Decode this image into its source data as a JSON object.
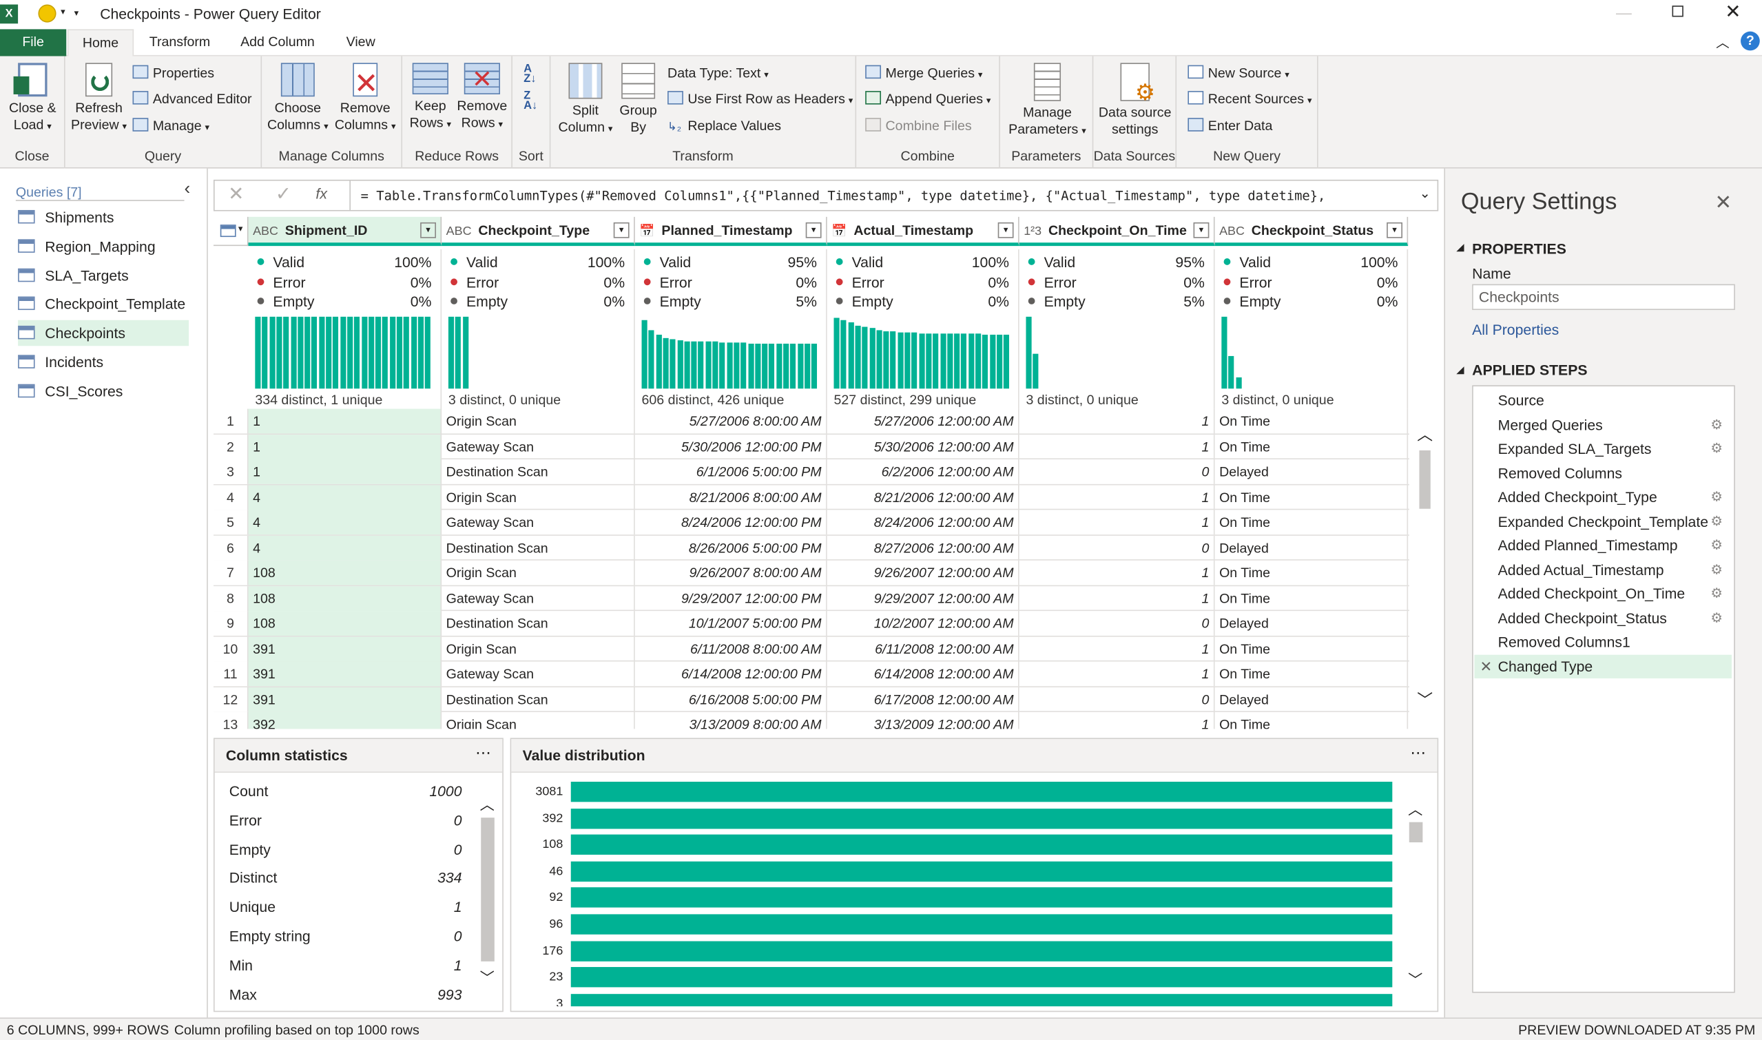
{
  "window": {
    "title": "Checkpoints - Power Query Editor"
  },
  "tabs": [
    "File",
    "Home",
    "Transform",
    "Add Column",
    "View"
  ],
  "ribbon": {
    "close": {
      "btn": "Close &\nLoad",
      "group": "Close"
    },
    "query": {
      "refresh": "Refresh\nPreview",
      "properties": "Properties",
      "advanced_editor": "Advanced Editor",
      "manage": "Manage",
      "group": "Query"
    },
    "manage_columns": {
      "choose": "Choose\nColumns",
      "remove": "Remove\nColumns",
      "group": "Manage Columns"
    },
    "reduce_rows": {
      "keep": "Keep\nRows",
      "remove": "Remove\nRows",
      "group": "Reduce Rows"
    },
    "sort": {
      "group": "Sort"
    },
    "transform": {
      "split": "Split\nColumn",
      "group_by": "Group\nBy",
      "data_type": "Data Type: Text",
      "first_row": "Use First Row as Headers",
      "replace": "Replace Values",
      "group": "Transform"
    },
    "combine": {
      "merge": "Merge Queries",
      "append": "Append Queries",
      "combine_files": "Combine Files",
      "group": "Combine"
    },
    "parameters": {
      "manage": "Manage\nParameters",
      "group": "Parameters"
    },
    "data_sources": {
      "settings": "Data source\nsettings",
      "group": "Data Sources"
    },
    "new_query": {
      "new_source": "New Source",
      "recent": "Recent Sources",
      "enter": "Enter Data",
      "group": "New Query"
    }
  },
  "queries": {
    "header": "Queries [7]",
    "items": [
      "Shipments",
      "Region_Mapping",
      "SLA_Targets",
      "Checkpoint_Template",
      "Checkpoints",
      "Incidents",
      "CSI_Scores"
    ],
    "selected": 4
  },
  "formula": "= Table.TransformColumnTypes(#\"Removed Columns1\",{{\"Planned_Timestamp\", type datetime}, {\"Actual_Timestamp\", type datetime},",
  "columns": [
    {
      "type": "ABC",
      "name": "Shipment_ID",
      "valid": "100%",
      "error": "0%",
      "empty": "0%",
      "dist": "334 distinct, 1 unique",
      "bars": [
        1,
        1,
        1,
        1,
        1,
        1,
        1,
        1,
        1,
        1,
        1,
        1,
        1,
        1,
        1,
        1,
        1,
        1,
        1,
        1,
        1,
        1,
        1,
        1,
        1
      ]
    },
    {
      "type": "ABC",
      "name": "Checkpoint_Type",
      "valid": "100%",
      "error": "0%",
      "empty": "0%",
      "dist": "3 distinct, 0 unique",
      "bars": [
        1,
        1,
        1
      ]
    },
    {
      "type": "📅",
      "name": "Planned_Timestamp",
      "valid": "95%",
      "error": "0%",
      "empty": "5%",
      "dist": "606 distinct, 426 unique",
      "bars": [
        0.95,
        0.82,
        0.75,
        0.7,
        0.68,
        0.67,
        0.66,
        0.66,
        0.65,
        0.65,
        0.65,
        0.64,
        0.64,
        0.64,
        0.64,
        0.63,
        0.63,
        0.63,
        0.63,
        0.63,
        0.63,
        0.62,
        0.62,
        0.62,
        0.62
      ]
    },
    {
      "type": "📅",
      "name": "Actual_Timestamp",
      "valid": "100%",
      "error": "0%",
      "empty": "0%",
      "dist": "527 distinct, 299 unique",
      "bars": [
        0.98,
        0.95,
        0.92,
        0.88,
        0.86,
        0.84,
        0.82,
        0.8,
        0.8,
        0.78,
        0.78,
        0.78,
        0.77,
        0.77,
        0.77,
        0.77,
        0.76,
        0.76,
        0.76,
        0.76,
        0.76,
        0.75,
        0.75,
        0.75,
        0.75
      ]
    },
    {
      "type": "1²3",
      "name": "Checkpoint_On_Time",
      "valid": "95%",
      "error": "0%",
      "empty": "5%",
      "dist": "3 distinct, 0 unique",
      "bars": [
        1,
        0.48
      ]
    },
    {
      "type": "ABC",
      "name": "Checkpoint_Status",
      "valid": "100%",
      "error": "0%",
      "empty": "0%",
      "dist": "3 distinct, 0 unique",
      "bars": [
        1,
        0.45,
        0.15
      ]
    }
  ],
  "profile_labels": {
    "valid": "Valid",
    "error": "Error",
    "empty": "Empty"
  },
  "rows": [
    [
      "1",
      "1",
      "Origin Scan",
      "5/27/2006 8:00:00 AM",
      "5/27/2006 12:00:00 AM",
      "1",
      "On Time"
    ],
    [
      "2",
      "1",
      "Gateway Scan",
      "5/30/2006 12:00:00 PM",
      "5/30/2006 12:00:00 AM",
      "1",
      "On Time"
    ],
    [
      "3",
      "1",
      "Destination Scan",
      "6/1/2006 5:00:00 PM",
      "6/2/2006 12:00:00 AM",
      "0",
      "Delayed"
    ],
    [
      "4",
      "4",
      "Origin Scan",
      "8/21/2006 8:00:00 AM",
      "8/21/2006 12:00:00 AM",
      "1",
      "On Time"
    ],
    [
      "5",
      "4",
      "Gateway Scan",
      "8/24/2006 12:00:00 PM",
      "8/24/2006 12:00:00 AM",
      "1",
      "On Time"
    ],
    [
      "6",
      "4",
      "Destination Scan",
      "8/26/2006 5:00:00 PM",
      "8/27/2006 12:00:00 AM",
      "0",
      "Delayed"
    ],
    [
      "7",
      "108",
      "Origin Scan",
      "9/26/2007 8:00:00 AM",
      "9/26/2007 12:00:00 AM",
      "1",
      "On Time"
    ],
    [
      "8",
      "108",
      "Gateway Scan",
      "9/29/2007 12:00:00 PM",
      "9/29/2007 12:00:00 AM",
      "1",
      "On Time"
    ],
    [
      "9",
      "108",
      "Destination Scan",
      "10/1/2007 5:00:00 PM",
      "10/2/2007 12:00:00 AM",
      "0",
      "Delayed"
    ],
    [
      "10",
      "391",
      "Origin Scan",
      "6/11/2008 8:00:00 AM",
      "6/11/2008 12:00:00 AM",
      "1",
      "On Time"
    ],
    [
      "11",
      "391",
      "Gateway Scan",
      "6/14/2008 12:00:00 PM",
      "6/14/2008 12:00:00 AM",
      "1",
      "On Time"
    ],
    [
      "12",
      "391",
      "Destination Scan",
      "6/16/2008 5:00:00 PM",
      "6/17/2008 12:00:00 AM",
      "0",
      "Delayed"
    ],
    [
      "13",
      "392",
      "Origin Scan",
      "3/13/2009 8:00:00 AM",
      "3/13/2009 12:00:00 AM",
      "1",
      "On Time"
    ]
  ],
  "column_statistics": {
    "title": "Column statistics",
    "items": [
      [
        "Count",
        "1000"
      ],
      [
        "Error",
        "0"
      ],
      [
        "Empty",
        "0"
      ],
      [
        "Distinct",
        "334"
      ],
      [
        "Unique",
        "1"
      ],
      [
        "Empty string",
        "0"
      ],
      [
        "Min",
        "1"
      ],
      [
        "Max",
        "993"
      ]
    ]
  },
  "value_distribution": {
    "title": "Value distribution",
    "items": [
      [
        "3081",
        1
      ],
      [
        "392",
        1
      ],
      [
        "108",
        1
      ],
      [
        "46",
        1
      ],
      [
        "92",
        1
      ],
      [
        "96",
        1
      ],
      [
        "176",
        1
      ],
      [
        "23",
        1
      ],
      [
        "3",
        1
      ]
    ]
  },
  "query_settings": {
    "title": "Query Settings",
    "properties": "PROPERTIES",
    "name_label": "Name",
    "name_value": "Checkpoints",
    "all_properties": "All Properties",
    "applied_steps": "APPLIED STEPS",
    "steps": [
      [
        "Source",
        false
      ],
      [
        "Merged Queries",
        true
      ],
      [
        "Expanded SLA_Targets",
        true
      ],
      [
        "Removed Columns",
        false
      ],
      [
        "Added Checkpoint_Type",
        true
      ],
      [
        "Expanded Checkpoint_Template",
        true
      ],
      [
        "Added Planned_Timestamp",
        true
      ],
      [
        "Added Actual_Timestamp",
        true
      ],
      [
        "Added Checkpoint_On_Time",
        true
      ],
      [
        "Added Checkpoint_Status",
        true
      ],
      [
        "Removed Columns1",
        false
      ],
      [
        "Changed Type",
        false
      ]
    ],
    "selected_step": 11
  },
  "status": {
    "left": "6 COLUMNS, 999+ ROWS",
    "profile": "Column profiling based on top 1000 rows",
    "right": "PREVIEW DOWNLOADED AT 9:35 PM"
  },
  "colors": {
    "accent": "#00b294",
    "excel": "#217346",
    "selected": "#dff3e6"
  }
}
